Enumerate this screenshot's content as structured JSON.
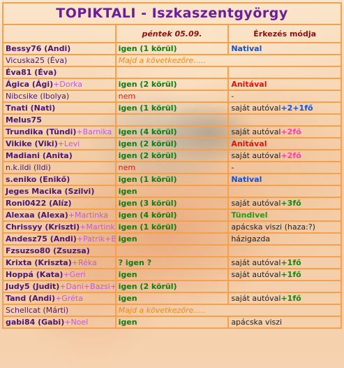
{
  "title": "TOPIKTALI - Iszkaszentgyörgy",
  "header": {
    "name_col": "",
    "date_col": "péntek 05.09.",
    "arrival_col": "Érkezés módja"
  },
  "rows": [
    {
      "name": "Bessy76 (Andi)",
      "extra": "",
      "bold": true,
      "status": "igen (1 körül)",
      "st": "green",
      "arrival": "Natival",
      "ar": "blue",
      "plus": "",
      "pl": ""
    },
    {
      "name": "Vicuska25 (Éva)",
      "extra": "",
      "bold": false,
      "status": "Majd a következőre.....",
      "st": "orange",
      "span": true,
      "arrival": "",
      "ar": "",
      "plus": "",
      "pl": ""
    },
    {
      "name": "Éva81 (Éva)",
      "extra": "",
      "bold": true,
      "status": "",
      "st": "",
      "arrival": "",
      "ar": "",
      "plus": "",
      "pl": ""
    },
    {
      "name": "Ágica (Ági)",
      "extra": "+Dorka",
      "bold": true,
      "status": "igen (2 körül)",
      "st": "green",
      "arrival": "Anitával",
      "ar": "red",
      "plus": "",
      "pl": ""
    },
    {
      "name": "Nibcsike (Ibolya)",
      "extra": "",
      "bold": false,
      "status": "nem",
      "st": "red",
      "arrival": "-",
      "ar": "dark",
      "plus": "",
      "pl": ""
    },
    {
      "name": "Tnati (Nati)",
      "extra": "",
      "bold": true,
      "status": "igen (1 körül)",
      "st": "green",
      "arrival": "saját autóval",
      "ar": "dark",
      "plus": "+2+1fő",
      "pl": "blue"
    },
    {
      "name": "Melus75",
      "extra": "",
      "bold": true,
      "status": "",
      "st": "",
      "arrival": "",
      "ar": "",
      "plus": "",
      "pl": ""
    },
    {
      "name": "Trundika (Tündi)",
      "extra": "+Barnika",
      "bold": true,
      "status": "igen (4 körül)",
      "st": "green",
      "arrival": "saját autóval",
      "ar": "dark",
      "plus": "+2fő",
      "pl": "pink"
    },
    {
      "name": "Vikike (Viki)",
      "extra": "+Levi",
      "bold": true,
      "status": "igen (2 körül)",
      "st": "green",
      "arrival": "Anitával",
      "ar": "red",
      "plus": "",
      "pl": ""
    },
    {
      "name": "Madiani (Anita)",
      "extra": "",
      "bold": true,
      "status": "igen (2 körül)",
      "st": "green",
      "arrival": "saját autóval",
      "ar": "dark",
      "plus": "+2fő",
      "pl": "pink"
    },
    {
      "name": "n.k.ildi (Ildi)",
      "extra": "",
      "bold": false,
      "status": "nem",
      "st": "red",
      "arrival": "-",
      "ar": "dark",
      "plus": "",
      "pl": ""
    },
    {
      "name": "s.eniko (Enikő)",
      "extra": "",
      "bold": true,
      "status": "igen (1 körül)",
      "st": "green",
      "arrival": "Natival",
      "ar": "blue",
      "plus": "",
      "pl": ""
    },
    {
      "name": "Jeges Macika (Szilvi)",
      "extra": "",
      "bold": true,
      "status": "igen",
      "st": "green",
      "arrival": "",
      "ar": "",
      "plus": "",
      "pl": ""
    },
    {
      "name": "Roni0422 (Alíz)",
      "extra": "",
      "bold": true,
      "status": "igen (3 körül)",
      "st": "green",
      "arrival": "saját autóval",
      "ar": "dark",
      "plus": "+3fő",
      "pl": "green"
    },
    {
      "name": "Alexaa (Alexa)",
      "extra": "+Martinka",
      "bold": true,
      "status": "igen (4 körül)",
      "st": "green",
      "arrival": "Tündivel",
      "ar": "green",
      "plus": "",
      "pl": ""
    },
    {
      "name": "Chrissyy (Kriszti)",
      "extra": "+Martinka",
      "bold": true,
      "status": "igen (1 körül)",
      "st": "green",
      "arrival": "apácska viszi (haza:?)",
      "ar": "dark",
      "plus": "",
      "pl": ""
    },
    {
      "name": "Andesz75 (Andi)",
      "extra": "+Patrik+Bencus",
      "bold": true,
      "status": "igen",
      "st": "green",
      "arrival": "házigazda",
      "ar": "dark",
      "plus": "",
      "pl": ""
    },
    {
      "name": "Fzsuzso80 (Zsuzsa)",
      "extra": "",
      "bold": true,
      "status": "",
      "st": "",
      "arrival": "",
      "ar": "",
      "plus": "",
      "pl": ""
    },
    {
      "name": "Krixta (Kriszta)",
      "extra": "+Réka",
      "bold": true,
      "status": "? igen ?",
      "st": "green",
      "arrival": "saját autóval",
      "ar": "dark",
      "plus": "+1fő",
      "pl": "green"
    },
    {
      "name": "Hoppá (Kata)",
      "extra": "+Geri",
      "bold": true,
      "status": "igen",
      "st": "green",
      "arrival": "saját autóval",
      "ar": "dark",
      "plus": "+1fő",
      "pl": "green"
    },
    {
      "name": "Judy5 (Judit)",
      "extra": "+Dani+Bazsi+Barbi",
      "bold": true,
      "status": "igen (2 körül)",
      "st": "green",
      "arrival": "",
      "ar": "",
      "plus": "",
      "pl": ""
    },
    {
      "name": "Tand (Andi)",
      "extra": "+Gréta",
      "bold": true,
      "status": "igen",
      "st": "green",
      "arrival": "saját autóval",
      "ar": "dark",
      "plus": "+1fő",
      "pl": "green"
    },
    {
      "name": "Schellcat (Márti)",
      "extra": "",
      "bold": false,
      "status": "Majd a következőre.....",
      "st": "orange",
      "span": true,
      "arrival": "",
      "ar": "",
      "plus": "",
      "pl": ""
    },
    {
      "name": "gabi84 (Gabi)",
      "extra": "+Noel",
      "bold": true,
      "status": "igen",
      "st": "green",
      "arrival": "apácska viszi",
      "ar": "dark",
      "plus": "",
      "pl": ""
    }
  ],
  "colors": {
    "border": "#f6a04c",
    "title": "#6b1e9a",
    "name": "#4a1670",
    "header": "#8a1010"
  }
}
